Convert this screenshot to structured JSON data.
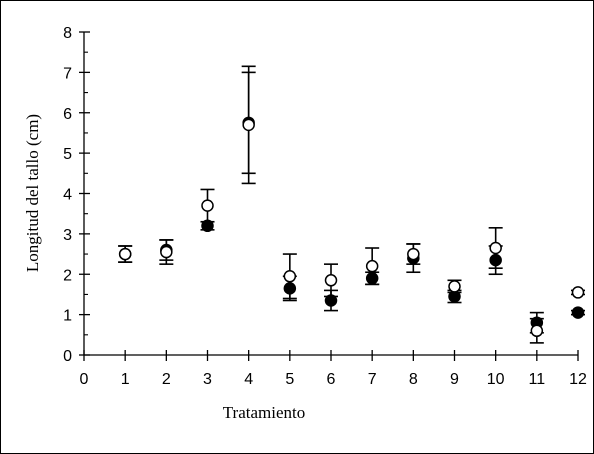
{
  "chart_data": {
    "type": "scatter",
    "title": "",
    "xlabel": "Tratamiento",
    "ylabel": "Longitud del tallo (cm)",
    "xlim": [
      0,
      12
    ],
    "ylim": [
      0,
      8
    ],
    "x_ticks": [
      "0",
      "1",
      "2",
      "3",
      "4",
      "5",
      "6",
      "7",
      "8",
      "9",
      "10",
      "11",
      "12"
    ],
    "y_ticks": [
      "0",
      "1",
      "2",
      "3",
      "4",
      "5",
      "6",
      "7",
      "8"
    ],
    "grid": false,
    "legend": "none",
    "series": [
      {
        "marker": "filled-circle",
        "color": "#000000",
        "x": [
          1,
          2,
          3,
          4,
          5,
          6,
          7,
          8,
          9,
          10,
          11,
          12
        ],
        "y": [
          2.5,
          2.6,
          3.2,
          5.75,
          1.65,
          1.35,
          1.9,
          2.4,
          1.45,
          2.35,
          0.8,
          1.05
        ],
        "err": [
          0.2,
          0.25,
          0.1,
          1.25,
          0.3,
          0.25,
          0.15,
          0.35,
          0.15,
          0.35,
          0.25,
          0.05
        ]
      },
      {
        "marker": "open-circle",
        "color": "#000000",
        "x": [
          1,
          2,
          3,
          4,
          5,
          6,
          7,
          8,
          9,
          10,
          11,
          12
        ],
        "y": [
          2.5,
          2.55,
          3.7,
          5.7,
          1.95,
          1.85,
          2.2,
          2.5,
          1.7,
          2.65,
          0.6,
          1.55
        ],
        "err": [
          0.2,
          0.3,
          0.4,
          1.45,
          0.55,
          0.4,
          0.45,
          0.25,
          0.15,
          0.5,
          0.3,
          0.05
        ]
      }
    ]
  }
}
